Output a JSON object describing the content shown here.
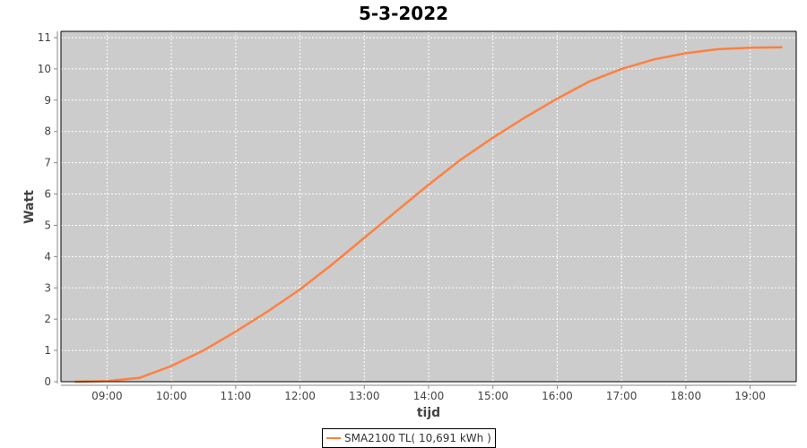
{
  "chart_data": {
    "type": "line",
    "title": "5-3-2022",
    "xlabel": "tijd",
    "ylabel": "Watt",
    "xlim": [
      "08:17",
      "19:43"
    ],
    "ylim": [
      0,
      11.2
    ],
    "x_ticks": [
      "09:00",
      "10:00",
      "11:00",
      "12:00",
      "13:00",
      "14:00",
      "15:00",
      "16:00",
      "17:00",
      "18:00",
      "19:00"
    ],
    "y_ticks": [
      0,
      1,
      2,
      3,
      4,
      5,
      6,
      7,
      8,
      9,
      10,
      11
    ],
    "grid": true,
    "background": "#cccccc",
    "legend_position": "bottom",
    "series": [
      {
        "name": "SMA2100 TL( 10,691 kWh )",
        "color": "#ff8040",
        "x": [
          "08:30",
          "09:00",
          "09:30",
          "10:00",
          "10:30",
          "11:00",
          "11:30",
          "12:00",
          "12:30",
          "13:00",
          "13:30",
          "14:00",
          "14:30",
          "15:00",
          "15:30",
          "16:00",
          "16:30",
          "17:00",
          "17:30",
          "18:00",
          "18:30",
          "19:00",
          "19:30"
        ],
        "y": [
          0,
          0.02,
          0.12,
          0.5,
          1.0,
          1.6,
          2.25,
          2.95,
          3.75,
          4.6,
          5.45,
          6.3,
          7.1,
          7.8,
          8.45,
          9.05,
          9.6,
          10.0,
          10.3,
          10.5,
          10.63,
          10.68,
          10.69
        ]
      }
    ]
  }
}
